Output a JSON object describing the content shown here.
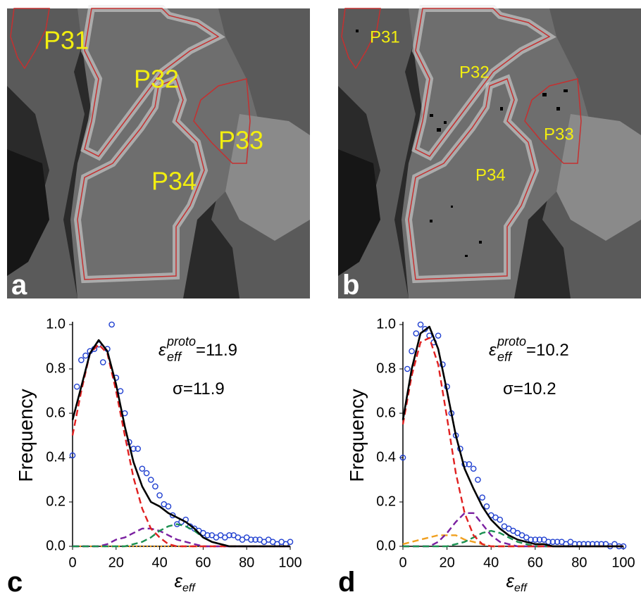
{
  "panels": [
    {
      "letter": "a",
      "regions": [
        "P31",
        "P32",
        "P33",
        "P34"
      ]
    },
    {
      "letter": "b",
      "regions": [
        "P31",
        "P32",
        "P33",
        "P34"
      ]
    }
  ],
  "chart_data": [
    {
      "type": "scatter",
      "panel_label": "c",
      "y_label": "Frequency",
      "x_label": {
        "symbol": "ε",
        "sub": "eff"
      },
      "annotations": [
        {
          "symbol": "ε",
          "sub": "eff",
          "sup": "proto",
          "text": "=11.9"
        },
        {
          "text": "σ=11.9"
        }
      ],
      "xlim": [
        0,
        100
      ],
      "xticks": [
        0,
        20,
        40,
        60,
        80,
        100
      ],
      "ylim": [
        0,
        1
      ],
      "yticks": [
        {
          "value": 0,
          "label": "0.0"
        },
        0.2,
        0.4,
        0.6,
        0.8,
        {
          "value": 1,
          "label": "1.0"
        }
      ],
      "series": [
        {
          "style": "markers",
          "color": "#1f3fd0",
          "x": [
            0,
            2,
            4,
            6,
            8,
            10,
            12,
            14,
            16,
            18,
            20,
            22,
            24,
            26,
            28,
            30,
            32,
            34,
            36,
            38,
            40,
            42,
            44,
            46,
            48,
            50,
            52,
            54,
            56,
            58,
            60,
            62,
            64,
            66,
            68,
            70,
            72,
            74,
            76,
            78,
            80,
            82,
            84,
            86,
            88,
            90,
            92,
            94,
            96,
            98,
            100
          ],
          "values": [
            0.41,
            0.72,
            0.84,
            0.86,
            0.88,
            0.89,
            0.91,
            0.83,
            0.89,
            1.0,
            0.76,
            0.7,
            0.6,
            0.47,
            0.44,
            0.44,
            0.35,
            0.33,
            0.3,
            0.27,
            0.23,
            0.19,
            0.18,
            0.14,
            0.1,
            0.11,
            0.12,
            0.09,
            0.08,
            0.07,
            0.06,
            0.05,
            0.05,
            0.04,
            0.05,
            0.04,
            0.05,
            0.05,
            0.04,
            0.03,
            0.04,
            0.03,
            0.03,
            0.03,
            0.02,
            0.03,
            0.02,
            0.01,
            0.02,
            0.01,
            0.02
          ]
        },
        {
          "style": "dotted",
          "color": "#f0a020",
          "x": [
            0,
            4,
            8,
            12,
            16,
            20,
            24,
            28,
            32,
            36,
            40,
            44,
            48,
            52,
            56,
            60,
            64,
            68,
            72,
            76,
            80,
            84,
            88,
            92,
            96,
            100
          ],
          "values": [
            0,
            0,
            0,
            0,
            0,
            0,
            0,
            0,
            0,
            0,
            0,
            0,
            0,
            0,
            0,
            0,
            0,
            0,
            0,
            0,
            0,
            0,
            0,
            0,
            0,
            0
          ]
        },
        {
          "style": "dashed",
          "color": "#7a1fa0",
          "x": [
            0,
            4,
            8,
            12,
            16,
            20,
            24,
            28,
            32,
            36,
            40,
            44,
            48,
            52,
            56,
            60,
            64,
            68,
            72,
            76,
            80,
            84,
            88,
            92,
            96,
            100
          ],
          "values": [
            0,
            0,
            0,
            0,
            0.01,
            0.03,
            0.04,
            0.06,
            0.08,
            0.08,
            0.07,
            0.05,
            0.03,
            0.02,
            0.01,
            0,
            0,
            0,
            0,
            0,
            0,
            0,
            0,
            0,
            0,
            0
          ]
        },
        {
          "style": "dashed",
          "color": "#1a9050",
          "x": [
            0,
            4,
            8,
            12,
            16,
            20,
            24,
            28,
            32,
            36,
            40,
            44,
            48,
            52,
            56,
            60,
            64,
            68,
            72,
            76,
            80,
            84,
            88,
            92,
            96,
            100
          ],
          "values": [
            0,
            0,
            0,
            0,
            0,
            0,
            0,
            0.01,
            0.02,
            0.04,
            0.07,
            0.09,
            0.1,
            0.09,
            0.07,
            0.04,
            0.02,
            0.01,
            0,
            0,
            0,
            0,
            0,
            0,
            0,
            0
          ]
        },
        {
          "style": "dashed",
          "color": "#e02020",
          "x": [
            0,
            4,
            8,
            12,
            16,
            20,
            24,
            28,
            32,
            36,
            40,
            44,
            48,
            52,
            56,
            60,
            64,
            68,
            72,
            76,
            80,
            84,
            88,
            92,
            96,
            100
          ],
          "values": [
            0.5,
            0.7,
            0.87,
            0.91,
            0.87,
            0.7,
            0.5,
            0.31,
            0.17,
            0.08,
            0.04,
            0.01,
            0,
            0,
            0,
            0,
            0,
            0,
            0,
            0,
            0,
            0,
            0,
            0,
            0,
            0
          ]
        },
        {
          "style": "solid",
          "color": "#000000",
          "x": [
            0,
            4,
            8,
            12,
            16,
            20,
            24,
            28,
            32,
            36,
            40,
            44,
            48,
            52,
            56,
            60,
            64,
            68,
            72,
            76,
            80,
            84,
            88,
            92,
            96,
            100
          ],
          "values": [
            0.57,
            0.72,
            0.87,
            0.93,
            0.88,
            0.73,
            0.54,
            0.38,
            0.27,
            0.2,
            0.18,
            0.15,
            0.13,
            0.11,
            0.08,
            0.04,
            0.02,
            0.01,
            0,
            0,
            0,
            0,
            0,
            0,
            0,
            0
          ]
        }
      ]
    },
    {
      "type": "scatter",
      "panel_label": "d",
      "y_label": "Frequency",
      "x_label": {
        "symbol": "ε",
        "sub": "eff"
      },
      "annotations": [
        {
          "symbol": "ε",
          "sub": "eff",
          "sup": "proto",
          "text": "=10.2"
        },
        {
          "text": "σ=10.2"
        }
      ],
      "xlim": [
        0,
        100
      ],
      "xticks": [
        0,
        20,
        40,
        60,
        80,
        100
      ],
      "ylim": [
        0,
        1
      ],
      "yticks": [
        {
          "value": 0,
          "label": "0.0"
        },
        0.2,
        0.4,
        0.6,
        0.8,
        {
          "value": 1,
          "label": "1.0"
        }
      ],
      "series": [
        {
          "style": "markers",
          "color": "#1f3fd0",
          "x": [
            0,
            2,
            4,
            6,
            8,
            10,
            12,
            14,
            16,
            18,
            20,
            22,
            24,
            26,
            28,
            30,
            32,
            34,
            36,
            38,
            40,
            42,
            44,
            46,
            48,
            50,
            52,
            54,
            56,
            58,
            60,
            62,
            64,
            66,
            68,
            70,
            72,
            74,
            76,
            78,
            80,
            82,
            84,
            86,
            88,
            90,
            92,
            94,
            96,
            98,
            100
          ],
          "values": [
            0.4,
            0.8,
            0.88,
            0.96,
            1.0,
            0.98,
            0.95,
            0.92,
            0.95,
            0.82,
            0.72,
            0.6,
            0.5,
            0.44,
            0.37,
            0.37,
            0.35,
            0.3,
            0.22,
            0.18,
            0.14,
            0.13,
            0.12,
            0.09,
            0.08,
            0.07,
            0.06,
            0.05,
            0.04,
            0.03,
            0.03,
            0.03,
            0.03,
            0.02,
            0.02,
            0.02,
            0.02,
            0.01,
            0.02,
            0.01,
            0.01,
            0.01,
            0.01,
            0.01,
            0.01,
            0.01,
            0.01,
            0.0,
            0.01,
            0.0,
            0.0
          ]
        },
        {
          "style": "dashed",
          "color": "#f0a020",
          "x": [
            0,
            4,
            8,
            12,
            16,
            20,
            24,
            28,
            32,
            36,
            40,
            44,
            48,
            52,
            56,
            60,
            64,
            68,
            72,
            76,
            80,
            84,
            88,
            92,
            96,
            100
          ],
          "values": [
            0.01,
            0.02,
            0.03,
            0.04,
            0.05,
            0.05,
            0.05,
            0.03,
            0.02,
            0.01,
            0,
            0,
            0,
            0,
            0,
            0,
            0,
            0,
            0,
            0,
            0,
            0,
            0,
            0,
            0,
            0
          ]
        },
        {
          "style": "dashed",
          "color": "#7a1fa0",
          "x": [
            0,
            4,
            8,
            12,
            16,
            20,
            24,
            28,
            32,
            36,
            40,
            44,
            48,
            52,
            56,
            60,
            64,
            68,
            72,
            76,
            80,
            84,
            88,
            92,
            96,
            100
          ],
          "values": [
            0,
            0,
            0,
            0,
            0.02,
            0.06,
            0.11,
            0.15,
            0.15,
            0.1,
            0.05,
            0.02,
            0.01,
            0,
            0,
            0,
            0,
            0,
            0,
            0,
            0,
            0,
            0,
            0,
            0,
            0
          ]
        },
        {
          "style": "dashed",
          "color": "#1a9050",
          "x": [
            0,
            4,
            8,
            12,
            16,
            20,
            24,
            28,
            32,
            36,
            40,
            44,
            48,
            52,
            56,
            60,
            64,
            68,
            72,
            76,
            80,
            84,
            88,
            92,
            96,
            100
          ],
          "values": [
            0,
            0,
            0,
            0,
            0,
            0,
            0.01,
            0.02,
            0.04,
            0.06,
            0.07,
            0.06,
            0.04,
            0.02,
            0.01,
            0,
            0,
            0,
            0,
            0,
            0,
            0,
            0,
            0,
            0,
            0
          ]
        },
        {
          "style": "dashed",
          "color": "#e02020",
          "x": [
            0,
            4,
            8,
            12,
            16,
            20,
            24,
            28,
            32,
            36,
            40,
            44,
            48,
            52,
            56,
            60,
            64,
            68,
            72,
            76,
            80,
            84,
            88,
            92,
            96,
            100
          ],
          "values": [
            0.55,
            0.77,
            0.92,
            0.94,
            0.82,
            0.58,
            0.33,
            0.15,
            0.05,
            0.01,
            0,
            0,
            0,
            0,
            0,
            0,
            0,
            0,
            0,
            0,
            0,
            0,
            0,
            0,
            0,
            0
          ]
        },
        {
          "style": "solid",
          "color": "#000000",
          "x": [
            0,
            4,
            8,
            12,
            16,
            20,
            24,
            28,
            32,
            36,
            40,
            44,
            48,
            52,
            56,
            60,
            64,
            68,
            72,
            76,
            80,
            84,
            88,
            92,
            96,
            100
          ],
          "values": [
            0.57,
            0.8,
            0.96,
            0.99,
            0.89,
            0.7,
            0.5,
            0.35,
            0.26,
            0.18,
            0.12,
            0.08,
            0.05,
            0.03,
            0.02,
            0.01,
            0.01,
            0,
            0,
            0,
            0,
            0,
            0,
            0,
            0,
            0
          ]
        }
      ]
    }
  ]
}
